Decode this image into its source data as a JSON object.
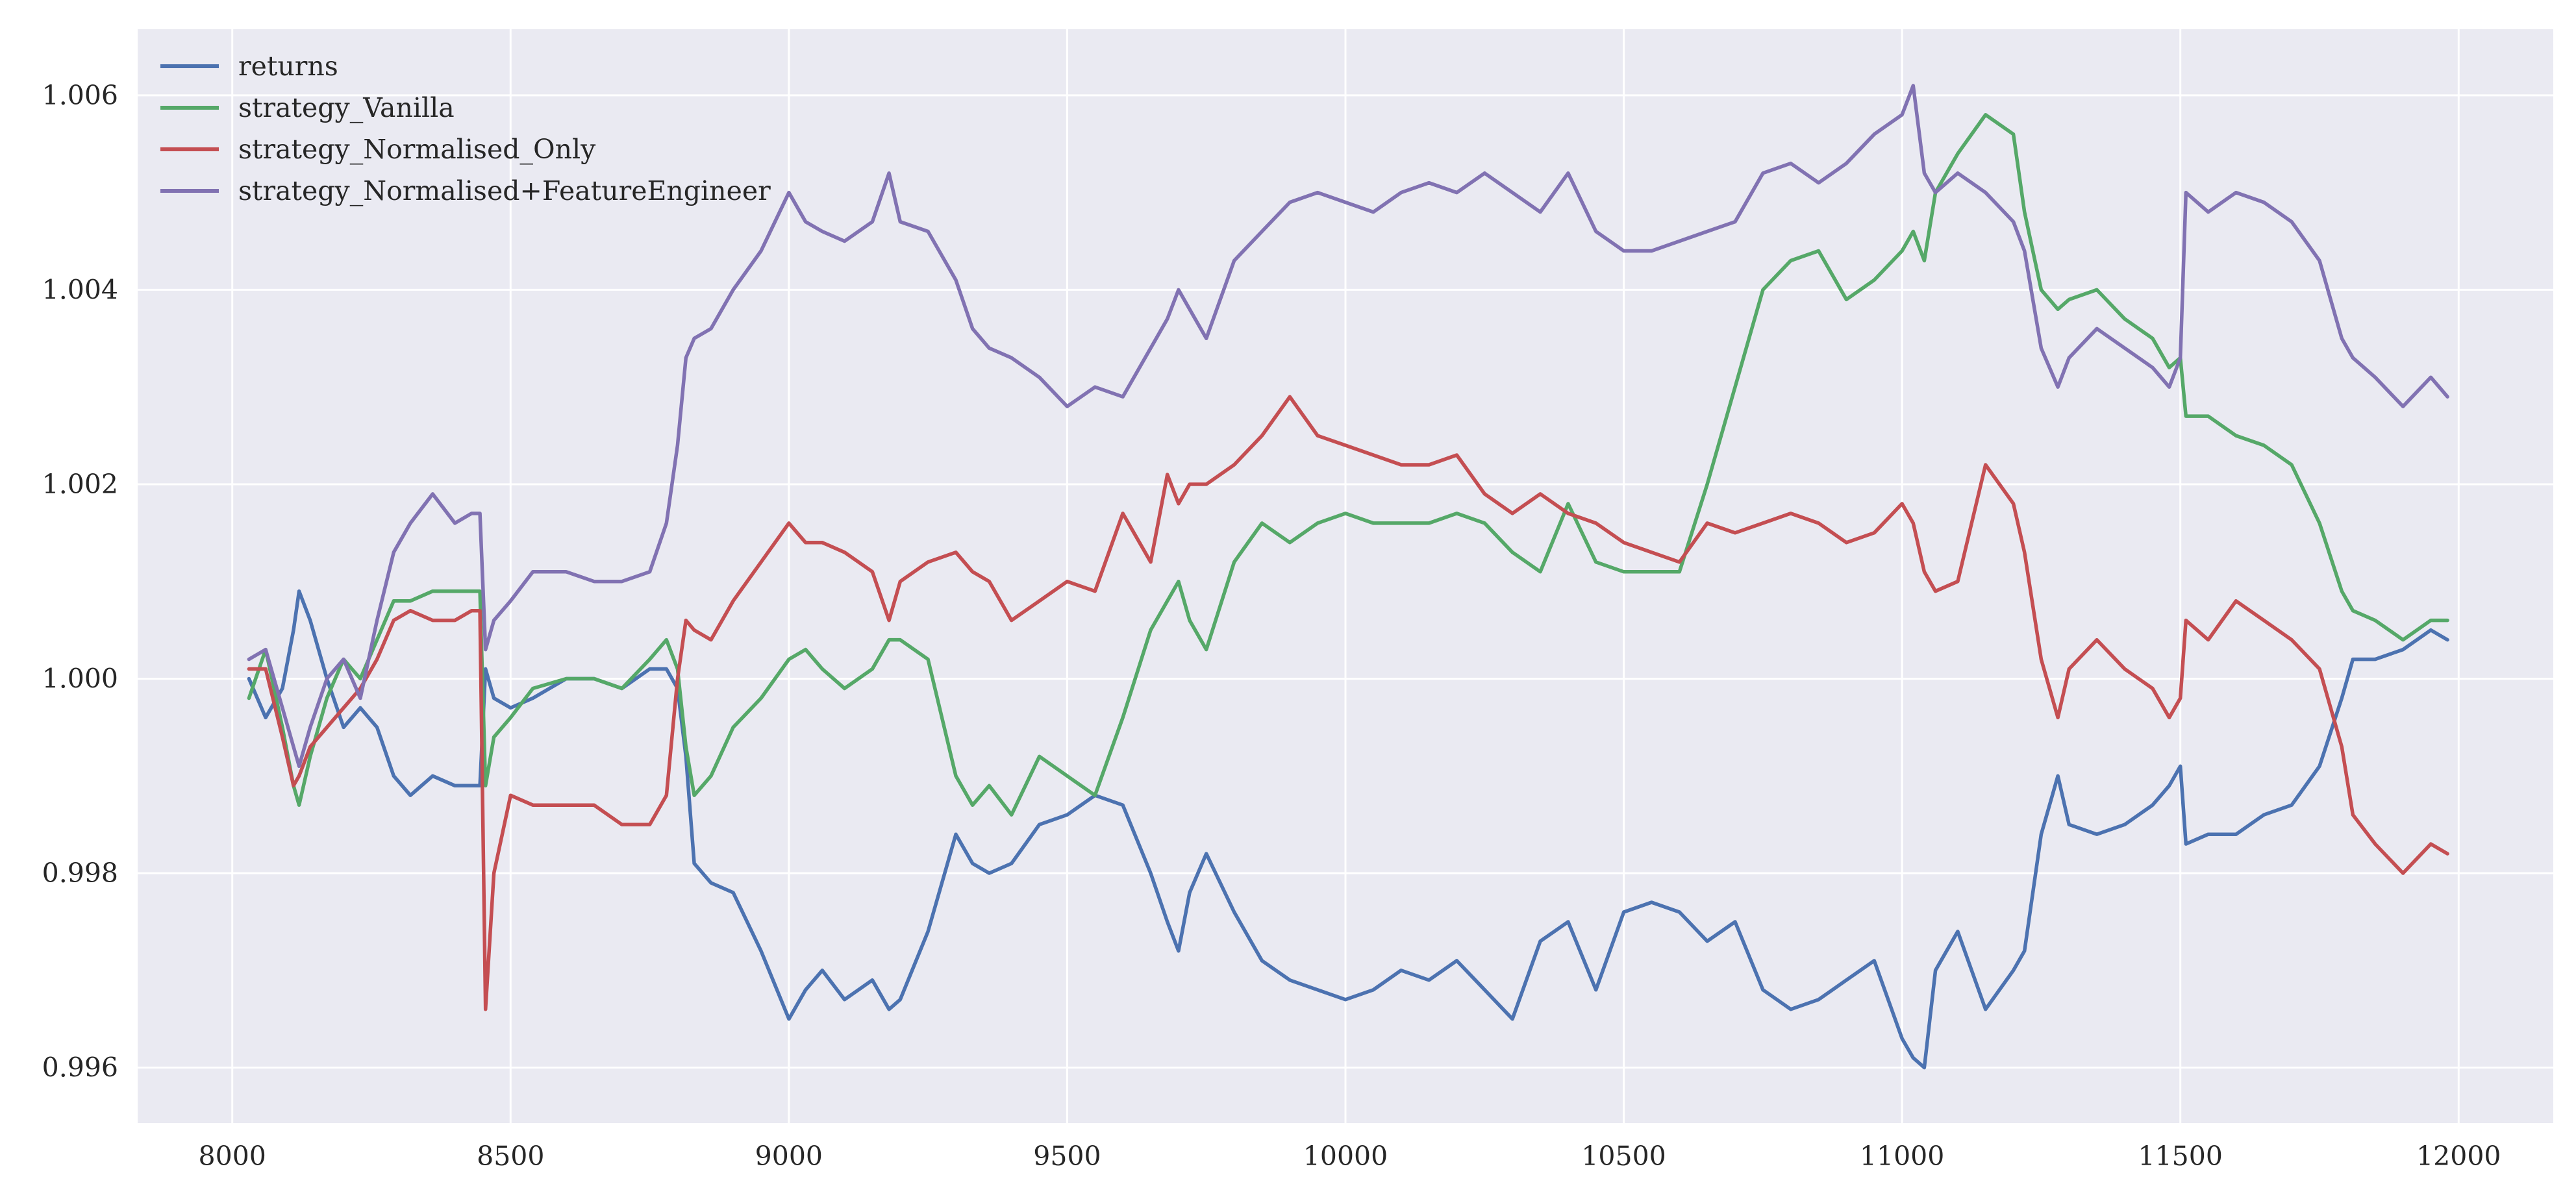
{
  "chart_data": {
    "type": "line",
    "title": "",
    "xlabel": "",
    "ylabel": "",
    "xlim": [
      7830,
      12170
    ],
    "ylim": [
      0.99543,
      1.00668
    ],
    "x_ticks": [
      8000,
      8500,
      9000,
      9500,
      10000,
      10500,
      11000,
      11500,
      12000
    ],
    "x_tick_labels": [
      "8000",
      "8500",
      "9000",
      "9500",
      "10000",
      "10500",
      "11000",
      "11500",
      "12000"
    ],
    "y_ticks": [
      0.996,
      0.998,
      1.0,
      1.002,
      1.004,
      1.006
    ],
    "y_tick_labels": [
      "0.996",
      "0.998",
      "1.000",
      "1.002",
      "1.004",
      "1.006"
    ],
    "grid": true,
    "legend_position": "top-left",
    "background": "#EAEAF2",
    "series": [
      {
        "name": "returns",
        "color": "#4C72B0",
        "x": [
          8030,
          8060,
          8090,
          8110,
          8120,
          8140,
          8170,
          8200,
          8230,
          8260,
          8290,
          8320,
          8360,
          8400,
          8430,
          8445,
          8455,
          8470,
          8500,
          8540,
          8600,
          8650,
          8700,
          8750,
          8780,
          8800,
          8815,
          8830,
          8860,
          8900,
          8950,
          9000,
          9030,
          9060,
          9100,
          9150,
          9180,
          9200,
          9250,
          9300,
          9330,
          9360,
          9400,
          9450,
          9500,
          9550,
          9600,
          9650,
          9680,
          9700,
          9720,
          9750,
          9800,
          9850,
          9900,
          9950,
          10000,
          10050,
          10100,
          10150,
          10200,
          10250,
          10300,
          10350,
          10400,
          10450,
          10500,
          10550,
          10600,
          10650,
          10700,
          10750,
          10800,
          10850,
          10900,
          10950,
          11000,
          11020,
          11040,
          11060,
          11100,
          11150,
          11200,
          11220,
          11250,
          11280,
          11300,
          11350,
          11400,
          11450,
          11480,
          11500,
          11510,
          11550,
          11600,
          11650,
          11700,
          11750,
          11790,
          11810,
          11850,
          11900,
          11950,
          11980
        ],
        "y": [
          1.0,
          0.9996,
          0.9999,
          1.0005,
          1.0009,
          1.0006,
          1.0,
          0.9995,
          0.9997,
          0.9995,
          0.999,
          0.9988,
          0.999,
          0.9989,
          0.9989,
          0.9989,
          1.0001,
          0.9998,
          0.9997,
          0.9998,
          1.0,
          1.0,
          0.9999,
          1.0001,
          1.0001,
          0.9999,
          0.9992,
          0.9981,
          0.9979,
          0.9978,
          0.9972,
          0.9965,
          0.9968,
          0.997,
          0.9967,
          0.9969,
          0.9966,
          0.9967,
          0.9974,
          0.9984,
          0.9981,
          0.998,
          0.9981,
          0.9985,
          0.9986,
          0.9988,
          0.9987,
          0.998,
          0.9975,
          0.9972,
          0.9978,
          0.9982,
          0.9976,
          0.9971,
          0.9969,
          0.9968,
          0.9967,
          0.9968,
          0.997,
          0.9969,
          0.9971,
          0.9968,
          0.9965,
          0.9973,
          0.9975,
          0.9968,
          0.9976,
          0.9977,
          0.9976,
          0.9973,
          0.9975,
          0.9968,
          0.9966,
          0.9967,
          0.9969,
          0.9971,
          0.9963,
          0.9961,
          0.996,
          0.997,
          0.9974,
          0.9966,
          0.997,
          0.9972,
          0.9984,
          0.999,
          0.9985,
          0.9984,
          0.9985,
          0.9987,
          0.9989,
          0.9991,
          0.9983,
          0.9984,
          0.9984,
          0.9986,
          0.9987,
          0.9991,
          0.9998,
          1.0002,
          1.0002,
          1.0003,
          1.0005,
          1.0004
        ]
      },
      {
        "name": "strategy_Vanilla",
        "color": "#55A868",
        "x": [
          8030,
          8060,
          8090,
          8110,
          8120,
          8140,
          8170,
          8200,
          8230,
          8260,
          8290,
          8320,
          8360,
          8400,
          8430,
          8445,
          8455,
          8470,
          8500,
          8540,
          8600,
          8650,
          8700,
          8750,
          8780,
          8800,
          8815,
          8830,
          8860,
          8900,
          8950,
          9000,
          9030,
          9060,
          9100,
          9150,
          9180,
          9200,
          9250,
          9300,
          9330,
          9360,
          9400,
          9450,
          9500,
          9550,
          9600,
          9650,
          9680,
          9700,
          9720,
          9750,
          9800,
          9850,
          9900,
          9950,
          10000,
          10050,
          10100,
          10150,
          10200,
          10250,
          10300,
          10350,
          10400,
          10450,
          10500,
          10550,
          10600,
          10650,
          10700,
          10750,
          10800,
          10850,
          10900,
          10950,
          11000,
          11020,
          11040,
          11060,
          11100,
          11150,
          11200,
          11220,
          11250,
          11280,
          11300,
          11350,
          11400,
          11450,
          11480,
          11500,
          11510,
          11550,
          11600,
          11650,
          11700,
          11750,
          11790,
          11810,
          11850,
          11900,
          11950,
          11980
        ],
        "y": [
          0.9998,
          1.0003,
          0.9995,
          0.9989,
          0.9987,
          0.9992,
          0.9998,
          1.0002,
          1.0,
          1.0004,
          1.0008,
          1.0008,
          1.0009,
          1.0009,
          1.0009,
          1.0009,
          0.9989,
          0.9994,
          0.9996,
          0.9999,
          1.0,
          1.0,
          0.9999,
          1.0002,
          1.0004,
          1.0001,
          0.9993,
          0.9988,
          0.999,
          0.9995,
          0.9998,
          1.0002,
          1.0003,
          1.0001,
          0.9999,
          1.0001,
          1.0004,
          1.0004,
          1.0002,
          0.999,
          0.9987,
          0.9989,
          0.9986,
          0.9992,
          0.999,
          0.9988,
          0.9996,
          1.0005,
          1.0008,
          1.001,
          1.0006,
          1.0003,
          1.0012,
          1.0016,
          1.0014,
          1.0016,
          1.0017,
          1.0016,
          1.0016,
          1.0016,
          1.0017,
          1.0016,
          1.0013,
          1.0011,
          1.0018,
          1.0012,
          1.0011,
          1.0011,
          1.0011,
          1.002,
          1.003,
          1.004,
          1.0043,
          1.0044,
          1.0039,
          1.0041,
          1.0044,
          1.0046,
          1.0043,
          1.005,
          1.0054,
          1.0058,
          1.0056,
          1.0048,
          1.004,
          1.0038,
          1.0039,
          1.004,
          1.0037,
          1.0035,
          1.0032,
          1.0033,
          1.0027,
          1.0027,
          1.0025,
          1.0024,
          1.0022,
          1.0016,
          1.0009,
          1.0007,
          1.0006,
          1.0004,
          1.0006,
          1.0006
        ]
      },
      {
        "name": "strategy_Normalised_Only",
        "color": "#C44E52",
        "x": [
          8030,
          8060,
          8090,
          8110,
          8120,
          8140,
          8170,
          8200,
          8230,
          8260,
          8290,
          8320,
          8360,
          8400,
          8430,
          8445,
          8455,
          8470,
          8500,
          8540,
          8600,
          8650,
          8700,
          8750,
          8780,
          8800,
          8815,
          8830,
          8860,
          8900,
          8950,
          9000,
          9030,
          9060,
          9100,
          9150,
          9180,
          9200,
          9250,
          9300,
          9330,
          9360,
          9400,
          9450,
          9500,
          9550,
          9600,
          9650,
          9680,
          9700,
          9720,
          9750,
          9800,
          9850,
          9900,
          9950,
          10000,
          10050,
          10100,
          10150,
          10200,
          10250,
          10300,
          10350,
          10400,
          10450,
          10500,
          10550,
          10600,
          10650,
          10700,
          10750,
          10800,
          10850,
          10900,
          10950,
          11000,
          11020,
          11040,
          11060,
          11100,
          11150,
          11200,
          11220,
          11250,
          11280,
          11300,
          11350,
          11400,
          11450,
          11480,
          11500,
          11510,
          11550,
          11600,
          11650,
          11700,
          11750,
          11790,
          11810,
          11850,
          11900,
          11950,
          11980
        ],
        "y": [
          1.0001,
          1.0001,
          0.9994,
          0.9989,
          0.999,
          0.9993,
          0.9995,
          0.9997,
          0.9999,
          1.0002,
          1.0006,
          1.0007,
          1.0006,
          1.0006,
          1.0007,
          1.0007,
          0.9966,
          0.998,
          0.9988,
          0.9987,
          0.9987,
          0.9987,
          0.9985,
          0.9985,
          0.9988,
          1.0,
          1.0006,
          1.0005,
          1.0004,
          1.0008,
          1.0012,
          1.0016,
          1.0014,
          1.0014,
          1.0013,
          1.0011,
          1.0006,
          1.001,
          1.0012,
          1.0013,
          1.0011,
          1.001,
          1.0006,
          1.0008,
          1.001,
          1.0009,
          1.0017,
          1.0012,
          1.0021,
          1.0018,
          1.002,
          1.002,
          1.0022,
          1.0025,
          1.0029,
          1.0025,
          1.0024,
          1.0023,
          1.0022,
          1.0022,
          1.0023,
          1.0019,
          1.0017,
          1.0019,
          1.0017,
          1.0016,
          1.0014,
          1.0013,
          1.0012,
          1.0016,
          1.0015,
          1.0016,
          1.0017,
          1.0016,
          1.0014,
          1.0015,
          1.0018,
          1.0016,
          1.0011,
          1.0009,
          1.001,
          1.0022,
          1.0018,
          1.0013,
          1.0002,
          0.9996,
          1.0001,
          1.0004,
          1.0001,
          0.9999,
          0.9996,
          0.9998,
          1.0006,
          1.0004,
          1.0008,
          1.0006,
          1.0004,
          1.0001,
          0.9993,
          0.9986,
          0.9983,
          0.998,
          0.9983,
          0.9982
        ]
      },
      {
        "name": "strategy_Normalised+FeatureEngineer",
        "color": "#8172B2",
        "x": [
          8030,
          8060,
          8090,
          8110,
          8120,
          8140,
          8170,
          8200,
          8230,
          8260,
          8290,
          8320,
          8360,
          8400,
          8430,
          8445,
          8455,
          8470,
          8500,
          8540,
          8600,
          8650,
          8700,
          8750,
          8780,
          8800,
          8815,
          8830,
          8860,
          8900,
          8950,
          9000,
          9030,
          9060,
          9100,
          9150,
          9180,
          9200,
          9250,
          9300,
          9330,
          9360,
          9400,
          9450,
          9500,
          9550,
          9600,
          9650,
          9680,
          9700,
          9720,
          9750,
          9800,
          9850,
          9900,
          9950,
          10000,
          10050,
          10100,
          10150,
          10200,
          10250,
          10300,
          10350,
          10400,
          10450,
          10500,
          10550,
          10600,
          10650,
          10700,
          10750,
          10800,
          10850,
          10900,
          10950,
          11000,
          11020,
          11040,
          11060,
          11100,
          11150,
          11200,
          11220,
          11250,
          11280,
          11300,
          11350,
          11400,
          11450,
          11480,
          11500,
          11510,
          11550,
          11600,
          11650,
          11700,
          11750,
          11790,
          11810,
          11850,
          11900,
          11950,
          11980
        ],
        "y": [
          1.0002,
          1.0003,
          0.9997,
          0.9993,
          0.9991,
          0.9995,
          1.0,
          1.0002,
          0.9998,
          1.0006,
          1.0013,
          1.0016,
          1.0019,
          1.0016,
          1.0017,
          1.0017,
          1.0003,
          1.0006,
          1.0008,
          1.0011,
          1.0011,
          1.001,
          1.001,
          1.0011,
          1.0016,
          1.0024,
          1.0033,
          1.0035,
          1.0036,
          1.004,
          1.0044,
          1.005,
          1.0047,
          1.0046,
          1.0045,
          1.0047,
          1.0052,
          1.0047,
          1.0046,
          1.0041,
          1.0036,
          1.0034,
          1.0033,
          1.0031,
          1.0028,
          1.003,
          1.0029,
          1.0034,
          1.0037,
          1.004,
          1.0038,
          1.0035,
          1.0043,
          1.0046,
          1.0049,
          1.005,
          1.0049,
          1.0048,
          1.005,
          1.0051,
          1.005,
          1.0052,
          1.005,
          1.0048,
          1.0052,
          1.0046,
          1.0044,
          1.0044,
          1.0045,
          1.0046,
          1.0047,
          1.0052,
          1.0053,
          1.0051,
          1.0053,
          1.0056,
          1.0058,
          1.0061,
          1.0052,
          1.005,
          1.0052,
          1.005,
          1.0047,
          1.0044,
          1.0034,
          1.003,
          1.0033,
          1.0036,
          1.0034,
          1.0032,
          1.003,
          1.0033,
          1.005,
          1.0048,
          1.005,
          1.0049,
          1.0047,
          1.0043,
          1.0035,
          1.0033,
          1.0031,
          1.0028,
          1.0031,
          1.0029
        ]
      }
    ]
  }
}
